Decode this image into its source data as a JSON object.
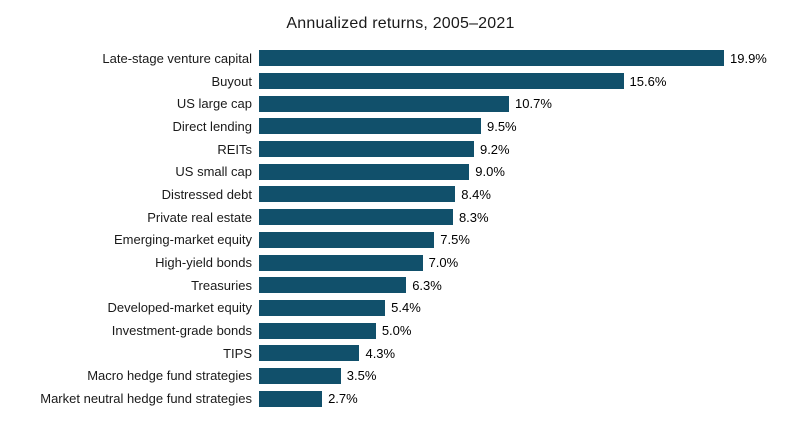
{
  "chart_data": {
    "type": "bar",
    "orientation": "horizontal",
    "title": "Annualized returns, 2005–2021",
    "categories": [
      "Late-stage venture capital",
      "Buyout",
      "US large cap",
      "Direct lending",
      "REITs",
      "US small cap",
      "Distressed debt",
      "Private real estate",
      "Emerging-market equity",
      "High-yield bonds",
      "Treasuries",
      "Developed-market equity",
      "Investment-grade bonds",
      "TIPS",
      "Macro hedge fund strategies",
      "Market neutral hedge fund strategies"
    ],
    "values": [
      19.9,
      15.6,
      10.7,
      9.5,
      9.2,
      9.0,
      8.4,
      8.3,
      7.5,
      7.0,
      6.3,
      5.4,
      5.0,
      4.3,
      3.5,
      2.7
    ],
    "value_labels": [
      "19.9%",
      "15.6%",
      "10.7%",
      "9.5%",
      "9.2%",
      "9.0%",
      "8.4%",
      "8.3%",
      "7.5%",
      "7.0%",
      "6.3%",
      "5.4%",
      "5.0%",
      "4.3%",
      "3.5%",
      "2.7%"
    ],
    "xlabel": "",
    "ylabel": "",
    "xlim": [
      0,
      19.9
    ],
    "grid": false,
    "legend": false,
    "bar_color": "#11506b",
    "title_color": "#1a1a1a",
    "label_color": "#1a1a1a"
  }
}
